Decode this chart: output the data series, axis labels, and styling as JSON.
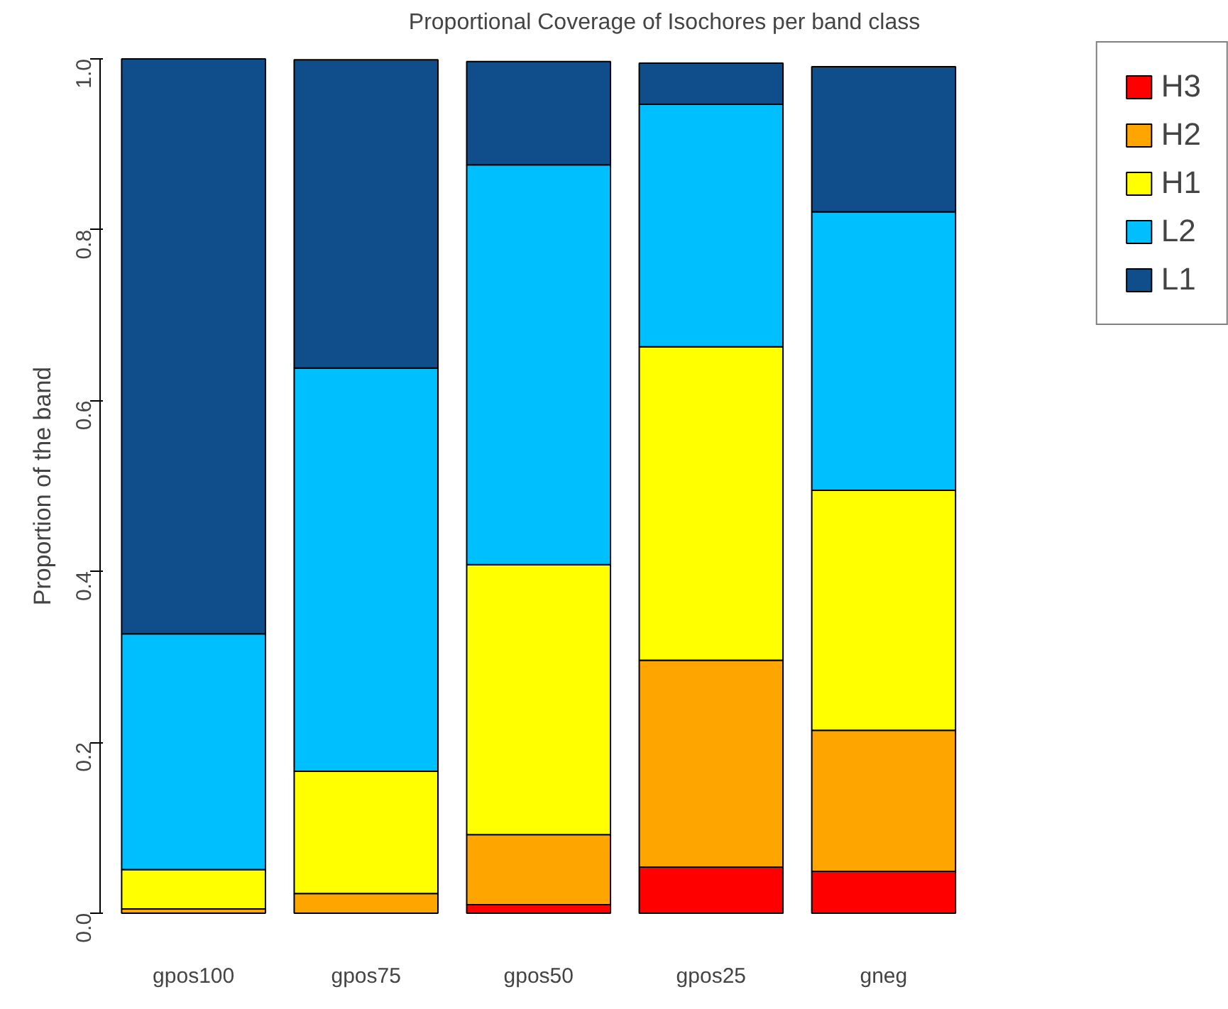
{
  "chart_data": {
    "type": "bar",
    "stacked": true,
    "title": "Proportional Coverage of Isochores per band class",
    "ylabel": "Proportion of the band",
    "categories": [
      "gpos100",
      "gpos75",
      "gpos50",
      "gpos25",
      "gneg"
    ],
    "series": [
      {
        "name": "H3",
        "color": "#ff0000",
        "values": [
          0,
          0,
          0.01,
          0.054,
          0.049
        ]
      },
      {
        "name": "H2",
        "color": "#ffa500",
        "values": [
          0.005,
          0.023,
          0.082,
          0.242,
          0.165
        ]
      },
      {
        "name": "H1",
        "color": "#ffff00",
        "values": [
          0.046,
          0.143,
          0.316,
          0.367,
          0.281
        ]
      },
      {
        "name": "L2",
        "color": "#00bfff",
        "values": [
          0.276,
          0.472,
          0.468,
          0.284,
          0.326
        ]
      },
      {
        "name": "L1",
        "color": "#104e8b",
        "values": [
          0.673,
          0.361,
          0.121,
          0.048,
          0.17
        ]
      }
    ],
    "ylim": [
      0,
      1
    ],
    "yticks": [
      {
        "value": 0,
        "label": "0.0"
      },
      0.2,
      0.4,
      0.6,
      0.8,
      {
        "value": 1,
        "label": "1.0"
      }
    ],
    "grid": false,
    "legend": "top right"
  }
}
